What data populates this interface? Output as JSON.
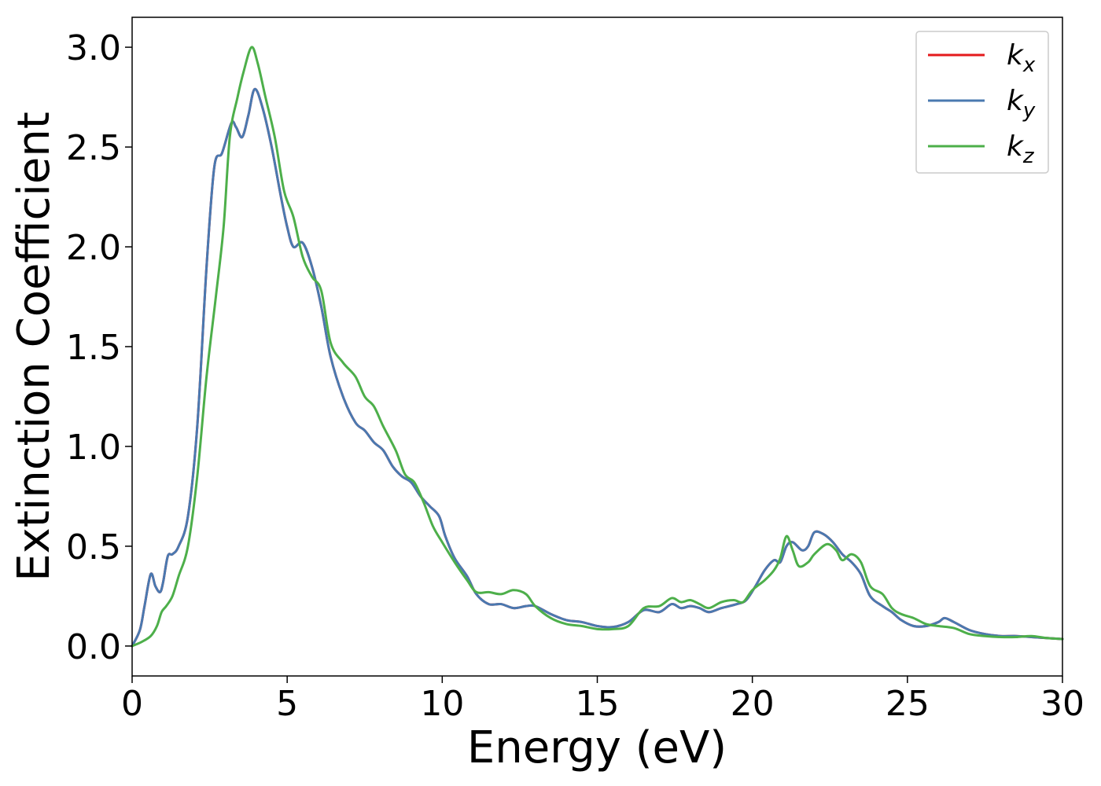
{
  "chart_data": {
    "type": "line",
    "xlabel": "Energy (eV)",
    "ylabel": "Extinction Coefficient",
    "xlim": [
      0,
      30
    ],
    "ylim": [
      -0.15,
      3.15
    ],
    "xticks": [
      0,
      5,
      10,
      15,
      20,
      25,
      30
    ],
    "yticks": [
      0.0,
      0.5,
      1.0,
      1.5,
      2.0,
      2.5,
      3.0
    ],
    "xtick_labels": [
      "0",
      "5",
      "10",
      "15",
      "20",
      "25",
      "30"
    ],
    "ytick_labels": [
      "0.0",
      "0.5",
      "1.0",
      "1.5",
      "2.0",
      "2.5",
      "3.0"
    ],
    "grid": false,
    "legend_position": "top-right",
    "series": [
      {
        "name": "k_x",
        "label_base": "k",
        "label_sub": "x",
        "color": "#e41a1c",
        "points": [
          [
            0,
            0.0
          ],
          [
            0.25,
            0.08
          ],
          [
            0.4,
            0.2
          ],
          [
            0.6,
            0.36
          ],
          [
            0.75,
            0.3
          ],
          [
            0.9,
            0.27
          ],
          [
            1.0,
            0.32
          ],
          [
            1.15,
            0.45
          ],
          [
            1.3,
            0.46
          ],
          [
            1.5,
            0.5
          ],
          [
            1.8,
            0.65
          ],
          [
            2.1,
            1.1
          ],
          [
            2.4,
            1.9
          ],
          [
            2.65,
            2.4
          ],
          [
            2.9,
            2.47
          ],
          [
            3.2,
            2.62
          ],
          [
            3.35,
            2.6
          ],
          [
            3.55,
            2.55
          ],
          [
            3.75,
            2.66
          ],
          [
            3.95,
            2.79
          ],
          [
            4.2,
            2.7
          ],
          [
            4.5,
            2.5
          ],
          [
            4.8,
            2.25
          ],
          [
            5.0,
            2.1
          ],
          [
            5.2,
            2.0
          ],
          [
            5.5,
            2.02
          ],
          [
            5.8,
            1.9
          ],
          [
            6.1,
            1.7
          ],
          [
            6.4,
            1.45
          ],
          [
            6.8,
            1.25
          ],
          [
            7.2,
            1.12
          ],
          [
            7.5,
            1.08
          ],
          [
            7.8,
            1.02
          ],
          [
            8.1,
            0.98
          ],
          [
            8.4,
            0.9
          ],
          [
            8.7,
            0.85
          ],
          [
            9.0,
            0.82
          ],
          [
            9.3,
            0.75
          ],
          [
            9.6,
            0.7
          ],
          [
            9.9,
            0.65
          ],
          [
            10.1,
            0.55
          ],
          [
            10.4,
            0.44
          ],
          [
            10.8,
            0.35
          ],
          [
            11.1,
            0.26
          ],
          [
            11.5,
            0.21
          ],
          [
            11.9,
            0.21
          ],
          [
            12.3,
            0.19
          ],
          [
            12.7,
            0.2
          ],
          [
            13.0,
            0.2
          ],
          [
            13.5,
            0.16
          ],
          [
            14.0,
            0.13
          ],
          [
            14.5,
            0.12
          ],
          [
            15.0,
            0.1
          ],
          [
            15.5,
            0.095
          ],
          [
            16.0,
            0.12
          ],
          [
            16.5,
            0.18
          ],
          [
            17.0,
            0.17
          ],
          [
            17.4,
            0.21
          ],
          [
            17.7,
            0.19
          ],
          [
            18.0,
            0.2
          ],
          [
            18.3,
            0.19
          ],
          [
            18.6,
            0.17
          ],
          [
            19.0,
            0.19
          ],
          [
            19.5,
            0.21
          ],
          [
            19.8,
            0.23
          ],
          [
            20.1,
            0.3
          ],
          [
            20.4,
            0.38
          ],
          [
            20.7,
            0.43
          ],
          [
            20.9,
            0.42
          ],
          [
            21.1,
            0.5
          ],
          [
            21.3,
            0.52
          ],
          [
            21.6,
            0.48
          ],
          [
            21.8,
            0.5
          ],
          [
            22.0,
            0.57
          ],
          [
            22.3,
            0.56
          ],
          [
            22.6,
            0.52
          ],
          [
            22.9,
            0.46
          ],
          [
            23.2,
            0.42
          ],
          [
            23.5,
            0.36
          ],
          [
            23.8,
            0.25
          ],
          [
            24.2,
            0.2
          ],
          [
            24.5,
            0.17
          ],
          [
            24.8,
            0.13
          ],
          [
            25.2,
            0.1
          ],
          [
            25.6,
            0.1
          ],
          [
            26.0,
            0.12
          ],
          [
            26.2,
            0.14
          ],
          [
            26.5,
            0.12
          ],
          [
            27.0,
            0.08
          ],
          [
            27.5,
            0.06
          ],
          [
            28.0,
            0.05
          ],
          [
            28.5,
            0.05
          ],
          [
            29.0,
            0.045
          ],
          [
            29.5,
            0.04
          ],
          [
            30.0,
            0.035
          ]
        ]
      },
      {
        "name": "k_y",
        "label_base": "k",
        "label_sub": "y",
        "color": "#4a79b0",
        "points": [
          [
            0,
            0.0
          ],
          [
            0.25,
            0.08
          ],
          [
            0.4,
            0.2
          ],
          [
            0.6,
            0.36
          ],
          [
            0.75,
            0.3
          ],
          [
            0.9,
            0.27
          ],
          [
            1.0,
            0.32
          ],
          [
            1.15,
            0.45
          ],
          [
            1.3,
            0.46
          ],
          [
            1.5,
            0.5
          ],
          [
            1.8,
            0.65
          ],
          [
            2.1,
            1.1
          ],
          [
            2.4,
            1.9
          ],
          [
            2.65,
            2.4
          ],
          [
            2.9,
            2.47
          ],
          [
            3.2,
            2.62
          ],
          [
            3.35,
            2.6
          ],
          [
            3.55,
            2.55
          ],
          [
            3.75,
            2.66
          ],
          [
            3.95,
            2.79
          ],
          [
            4.2,
            2.7
          ],
          [
            4.5,
            2.5
          ],
          [
            4.8,
            2.25
          ],
          [
            5.0,
            2.1
          ],
          [
            5.2,
            2.0
          ],
          [
            5.5,
            2.02
          ],
          [
            5.8,
            1.9
          ],
          [
            6.1,
            1.7
          ],
          [
            6.4,
            1.45
          ],
          [
            6.8,
            1.25
          ],
          [
            7.2,
            1.12
          ],
          [
            7.5,
            1.08
          ],
          [
            7.8,
            1.02
          ],
          [
            8.1,
            0.98
          ],
          [
            8.4,
            0.9
          ],
          [
            8.7,
            0.85
          ],
          [
            9.0,
            0.82
          ],
          [
            9.3,
            0.75
          ],
          [
            9.6,
            0.7
          ],
          [
            9.9,
            0.65
          ],
          [
            10.1,
            0.55
          ],
          [
            10.4,
            0.44
          ],
          [
            10.8,
            0.35
          ],
          [
            11.1,
            0.26
          ],
          [
            11.5,
            0.21
          ],
          [
            11.9,
            0.21
          ],
          [
            12.3,
            0.19
          ],
          [
            12.7,
            0.2
          ],
          [
            13.0,
            0.2
          ],
          [
            13.5,
            0.16
          ],
          [
            14.0,
            0.13
          ],
          [
            14.5,
            0.12
          ],
          [
            15.0,
            0.1
          ],
          [
            15.5,
            0.095
          ],
          [
            16.0,
            0.12
          ],
          [
            16.5,
            0.18
          ],
          [
            17.0,
            0.17
          ],
          [
            17.4,
            0.21
          ],
          [
            17.7,
            0.19
          ],
          [
            18.0,
            0.2
          ],
          [
            18.3,
            0.19
          ],
          [
            18.6,
            0.17
          ],
          [
            19.0,
            0.19
          ],
          [
            19.5,
            0.21
          ],
          [
            19.8,
            0.23
          ],
          [
            20.1,
            0.3
          ],
          [
            20.4,
            0.38
          ],
          [
            20.7,
            0.43
          ],
          [
            20.9,
            0.42
          ],
          [
            21.1,
            0.5
          ],
          [
            21.3,
            0.52
          ],
          [
            21.6,
            0.48
          ],
          [
            21.8,
            0.5
          ],
          [
            22.0,
            0.57
          ],
          [
            22.3,
            0.56
          ],
          [
            22.6,
            0.52
          ],
          [
            22.9,
            0.46
          ],
          [
            23.2,
            0.42
          ],
          [
            23.5,
            0.36
          ],
          [
            23.8,
            0.25
          ],
          [
            24.2,
            0.2
          ],
          [
            24.5,
            0.17
          ],
          [
            24.8,
            0.13
          ],
          [
            25.2,
            0.1
          ],
          [
            25.6,
            0.1
          ],
          [
            26.0,
            0.12
          ],
          [
            26.2,
            0.14
          ],
          [
            26.5,
            0.12
          ],
          [
            27.0,
            0.08
          ],
          [
            27.5,
            0.06
          ],
          [
            28.0,
            0.05
          ],
          [
            28.5,
            0.05
          ],
          [
            29.0,
            0.045
          ],
          [
            29.5,
            0.04
          ],
          [
            30.0,
            0.035
          ]
        ]
      },
      {
        "name": "k_z",
        "label_base": "k",
        "label_sub": "z",
        "color": "#4daf4a",
        "points": [
          [
            0,
            0.0
          ],
          [
            0.3,
            0.02
          ],
          [
            0.6,
            0.05
          ],
          [
            0.8,
            0.1
          ],
          [
            0.95,
            0.17
          ],
          [
            1.1,
            0.2
          ],
          [
            1.3,
            0.25
          ],
          [
            1.5,
            0.35
          ],
          [
            1.8,
            0.5
          ],
          [
            2.1,
            0.85
          ],
          [
            2.4,
            1.35
          ],
          [
            2.7,
            1.75
          ],
          [
            2.95,
            2.1
          ],
          [
            3.15,
            2.55
          ],
          [
            3.4,
            2.75
          ],
          [
            3.6,
            2.88
          ],
          [
            3.85,
            3.0
          ],
          [
            4.05,
            2.92
          ],
          [
            4.3,
            2.75
          ],
          [
            4.6,
            2.55
          ],
          [
            4.9,
            2.28
          ],
          [
            5.2,
            2.15
          ],
          [
            5.5,
            1.95
          ],
          [
            5.8,
            1.85
          ],
          [
            6.1,
            1.78
          ],
          [
            6.4,
            1.52
          ],
          [
            6.8,
            1.42
          ],
          [
            7.2,
            1.35
          ],
          [
            7.5,
            1.25
          ],
          [
            7.8,
            1.2
          ],
          [
            8.1,
            1.1
          ],
          [
            8.5,
            0.98
          ],
          [
            8.8,
            0.86
          ],
          [
            9.1,
            0.82
          ],
          [
            9.4,
            0.72
          ],
          [
            9.7,
            0.6
          ],
          [
            10.0,
            0.52
          ],
          [
            10.4,
            0.42
          ],
          [
            10.8,
            0.33
          ],
          [
            11.1,
            0.27
          ],
          [
            11.5,
            0.27
          ],
          [
            11.9,
            0.26
          ],
          [
            12.3,
            0.28
          ],
          [
            12.7,
            0.26
          ],
          [
            13.0,
            0.2
          ],
          [
            13.5,
            0.14
          ],
          [
            14.0,
            0.11
          ],
          [
            14.5,
            0.1
          ],
          [
            15.0,
            0.085
          ],
          [
            15.5,
            0.085
          ],
          [
            16.0,
            0.1
          ],
          [
            16.5,
            0.19
          ],
          [
            17.0,
            0.2
          ],
          [
            17.4,
            0.24
          ],
          [
            17.7,
            0.22
          ],
          [
            18.0,
            0.23
          ],
          [
            18.3,
            0.21
          ],
          [
            18.6,
            0.19
          ],
          [
            19.0,
            0.22
          ],
          [
            19.4,
            0.23
          ],
          [
            19.7,
            0.22
          ],
          [
            20.0,
            0.28
          ],
          [
            20.4,
            0.33
          ],
          [
            20.7,
            0.38
          ],
          [
            20.9,
            0.44
          ],
          [
            21.1,
            0.55
          ],
          [
            21.3,
            0.48
          ],
          [
            21.5,
            0.4
          ],
          [
            21.8,
            0.42
          ],
          [
            22.0,
            0.46
          ],
          [
            22.4,
            0.51
          ],
          [
            22.7,
            0.48
          ],
          [
            22.9,
            0.43
          ],
          [
            23.2,
            0.46
          ],
          [
            23.5,
            0.42
          ],
          [
            23.8,
            0.3
          ],
          [
            24.2,
            0.26
          ],
          [
            24.5,
            0.19
          ],
          [
            24.8,
            0.16
          ],
          [
            25.2,
            0.14
          ],
          [
            25.6,
            0.11
          ],
          [
            26.0,
            0.1
          ],
          [
            26.5,
            0.09
          ],
          [
            27.0,
            0.06
          ],
          [
            27.5,
            0.05
          ],
          [
            28.0,
            0.045
          ],
          [
            28.5,
            0.045
          ],
          [
            29.0,
            0.05
          ],
          [
            29.5,
            0.04
          ],
          [
            30.0,
            0.035
          ]
        ]
      }
    ]
  }
}
